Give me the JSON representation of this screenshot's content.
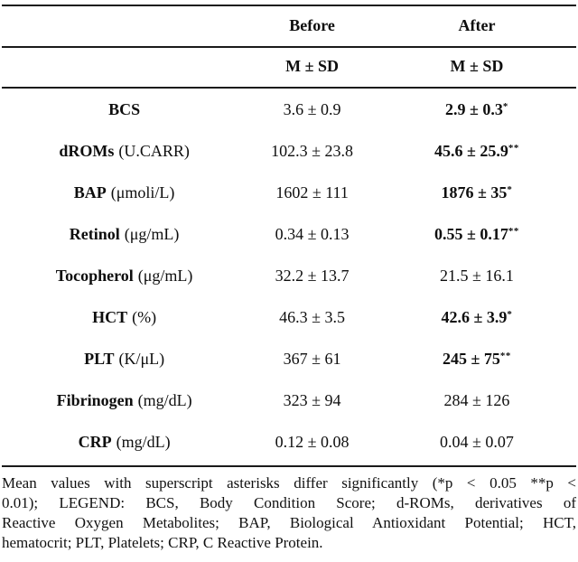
{
  "table": {
    "header": {
      "before": "Before",
      "after": "After",
      "subheader_msd": "M ± SD"
    },
    "rows": [
      {
        "name": "BCS",
        "unit": "",
        "before": "3.6 ± 0.9",
        "after": "2.9 ± 0.3",
        "sig": "*"
      },
      {
        "name": "dROMs",
        "unit": "(U.CARR)",
        "before": "102.3 ± 23.8",
        "after": "45.6 ± 25.9",
        "sig": "**"
      },
      {
        "name": "BAP",
        "unit": "(μmoli/L)",
        "before": "1602 ± 111",
        "after": "1876 ± 35",
        "sig": "*"
      },
      {
        "name": "Retinol",
        "unit": "(μg/mL)",
        "before": "0.34 ± 0.13",
        "after": "0.55 ± 0.17",
        "sig": "**"
      },
      {
        "name": "Tocopherol",
        "unit": "(μg/mL)",
        "before": "32.2 ± 13.7",
        "after": "21.5 ± 16.1",
        "sig": ""
      },
      {
        "name": "HCT",
        "unit": "(%)",
        "before": "46.3 ± 3.5",
        "after": "42.6 ± 3.9",
        "sig": "*"
      },
      {
        "name": "PLT",
        "unit": "(K/μL)",
        "before": "367 ± 61",
        "after": "245 ± 75",
        "sig": "**"
      },
      {
        "name": "Fibrinogen",
        "unit": "(mg/dL)",
        "before": "323 ± 94",
        "after": "284 ± 126",
        "sig": ""
      },
      {
        "name": "CRP",
        "unit": "(mg/dL)",
        "before": "0.12 ± 0.08",
        "after": "0.04 ± 0.07",
        "sig": ""
      }
    ]
  },
  "footnote": {
    "lines": [
      "Mean values with superscript asterisks differ significantly (*p < 0.05 **p <",
      "0.01); LEGEND: BCS, Body Condition Score; d-ROMs, derivatives of",
      "Reactive Oxygen Metabolites; BAP, Biological Antioxidant Potential; HCT,",
      "hematocrit; PLT, Platelets; CRP, C Reactive Protein."
    ]
  }
}
